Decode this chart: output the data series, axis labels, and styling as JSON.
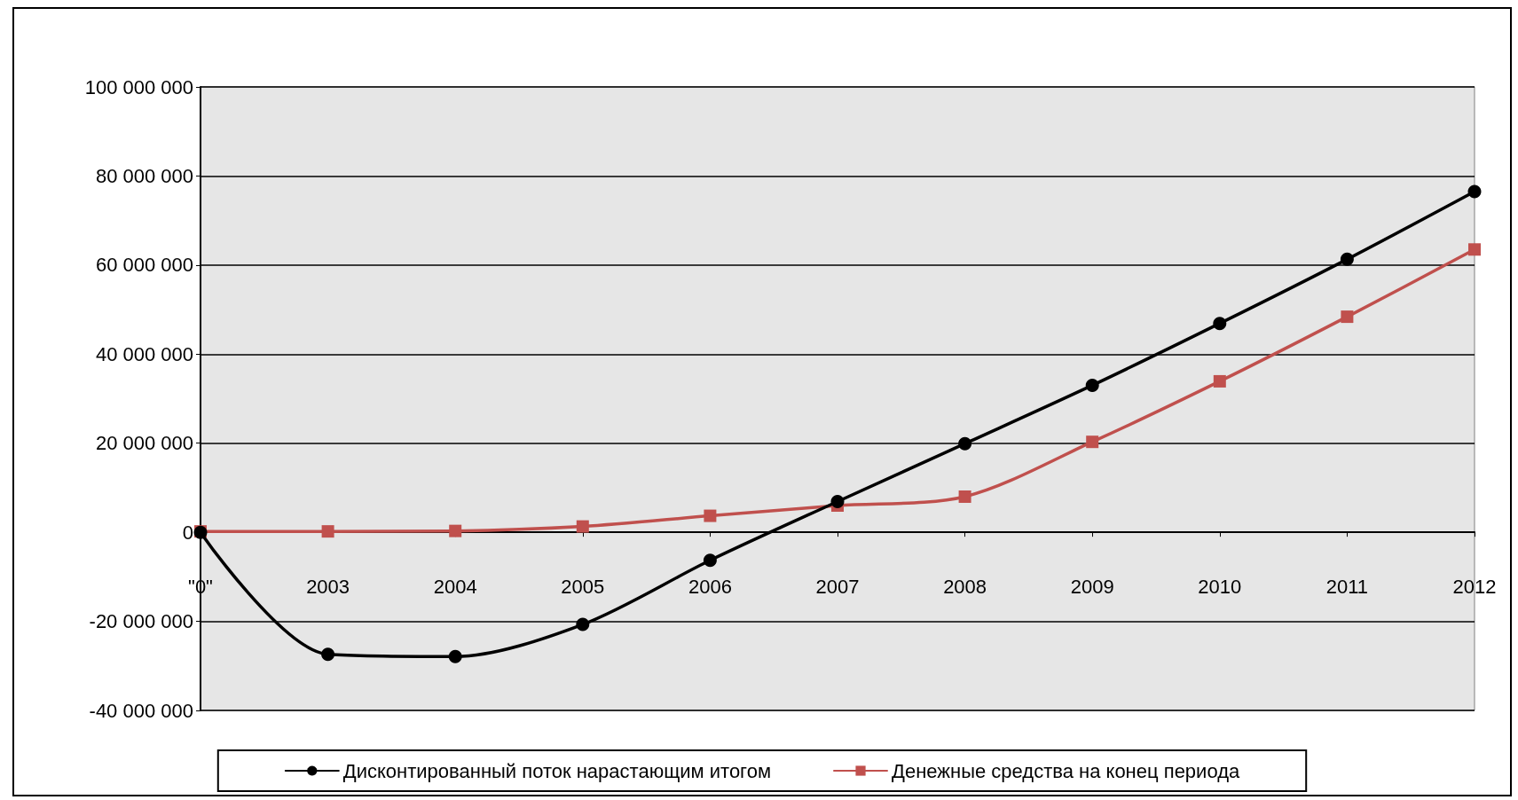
{
  "chart_data": {
    "type": "line",
    "categories": [
      "\"0\"",
      "2003",
      "2004",
      "2005",
      "2006",
      "2007",
      "2008",
      "2009",
      "2010",
      "2011",
      "2012"
    ],
    "series": [
      {
        "name": "Дисконтированный поток нарастающим итогом",
        "color": "#000000",
        "marker": "circle",
        "values": [
          0,
          -27400000,
          -27900000,
          -20700000,
          -6300000,
          6900000,
          19900000,
          33000000,
          46900000,
          61300000,
          76500000
        ]
      },
      {
        "name": "Денежные средства на конец периода",
        "color": "#c0504d",
        "marker": "square",
        "values": [
          200000,
          200000,
          300000,
          1300000,
          3700000,
          6000000,
          8000000,
          20300000,
          33900000,
          48400000,
          63500000
        ]
      }
    ],
    "ylim": [
      -40000000,
      100000000
    ],
    "yticks": [
      -40000000,
      -20000000,
      0,
      20000000,
      40000000,
      60000000,
      80000000,
      100000000
    ],
    "grid": "y",
    "legend": "bottom"
  }
}
